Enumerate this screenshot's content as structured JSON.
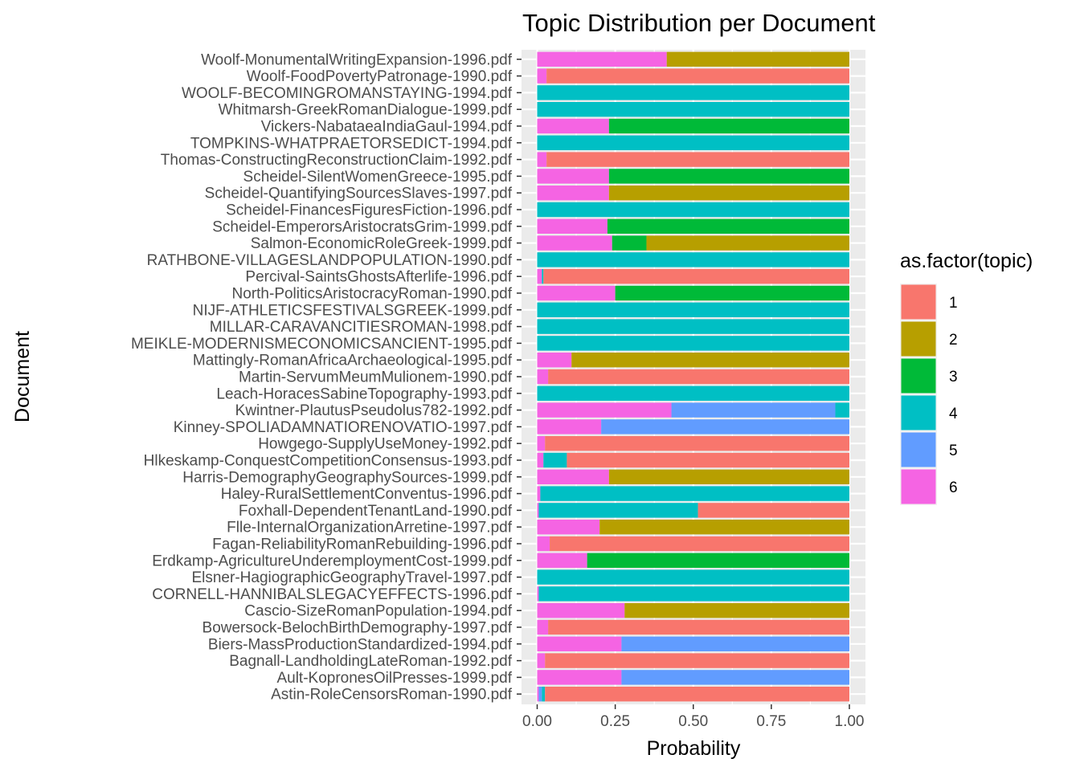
{
  "chart_data": {
    "type": "bar",
    "orientation": "horizontal",
    "stacked": true,
    "title": "Topic Distribution per Document",
    "xlabel": "Probability",
    "ylabel": "Document",
    "xlim": [
      0,
      1
    ],
    "x_ticks": [
      "0.00",
      "0.25",
      "0.50",
      "0.75",
      "1.00"
    ],
    "grid": true,
    "legend": {
      "title": "as.factor(topic)",
      "placement": "right",
      "entries": [
        "1",
        "2",
        "3",
        "4",
        "5",
        "6"
      ]
    },
    "colors": {
      "1": "#F8766D",
      "2": "#B79F00",
      "3": "#00BA38",
      "4": "#00BFC4",
      "5": "#619CFF",
      "6": "#F564E3"
    },
    "panel_background": "#EBEBEB",
    "stack_order": [
      "6",
      "5",
      "4",
      "3",
      "2",
      "1"
    ],
    "documents": [
      "Woolf-MonumentalWritingExpansion-1996.pdf",
      "Woolf-FoodPovertyPatronage-1990.pdf",
      "WOOLF-BECOMINGROMANSTAYING-1994.pdf",
      "Whitmarsh-GreekRomanDialogue-1999.pdf",
      "Vickers-NabataeaIndiaGaul-1994.pdf",
      "TOMPKINS-WHATPRAETORSEDICT-1994.pdf",
      "Thomas-ConstructingReconstructionClaim-1992.pdf",
      "Scheidel-SilentWomenGreece-1995.pdf",
      "Scheidel-QuantifyingSourcesSlaves-1997.pdf",
      "Scheidel-FinancesFiguresFiction-1996.pdf",
      "Scheidel-EmperorsAristocratsGrim-1999.pdf",
      "Salmon-EconomicRoleGreek-1999.pdf",
      "RATHBONE-VILLAGESLANDPOPULATION-1990.pdf",
      "Percival-SaintsGhostsAfterlife-1996.pdf",
      "North-PoliticsAristocracyRoman-1990.pdf",
      "NIJF-ATHLETICSFESTIVALSGREEK-1999.pdf",
      "MILLAR-CARAVANCITIESROMAN-1998.pdf",
      "MEIKLE-MODERNISMECONOMICSANCIENT-1995.pdf",
      "Mattingly-RomanAfricaArchaeological-1995.pdf",
      "Martin-ServumMeumMulionem-1990.pdf",
      "Leach-HoracesSabineTopography-1993.pdf",
      "Kwintner-PlautusPseudolus782-1992.pdf",
      "Kinney-SPOLIADAMNATIORENOVATIO-1997.pdf",
      "Howgego-SupplyUseMoney-1992.pdf",
      "Hlkeskamp-ConquestCompetitionConsensus-1993.pdf",
      "Harris-DemographyGeographySources-1999.pdf",
      "Haley-RuralSettlementConventus-1996.pdf",
      "Foxhall-DependentTenantLand-1990.pdf",
      "Flle-InternalOrganizationArretine-1997.pdf",
      "Fagan-ReliabilityRomanRebuilding-1996.pdf",
      "Erdkamp-AgricultureUnderemploymentCost-1999.pdf",
      "Elsner-HagiographicGeographyTravel-1997.pdf",
      "CORNELL-HANNIBALSLEGACYEFFECTS-1996.pdf",
      "Cascio-SizeRomanPopulation-1994.pdf",
      "Bowersock-BelochBirthDemography-1997.pdf",
      "Biers-MassProductionStandardized-1994.pdf",
      "Bagnall-LandholdingLateRoman-1992.pdf",
      "Ault-KopronesOilPresses-1999.pdf",
      "Astin-RoleCensorsRoman-1990.pdf"
    ],
    "series": [
      {
        "name": "1",
        "values": [
          0,
          0.97,
          0,
          0,
          0,
          0,
          0.97,
          0,
          0,
          0,
          0,
          0,
          0,
          0.98,
          0,
          0,
          0,
          0,
          0,
          0.965,
          0,
          0,
          0,
          0.975,
          0.905,
          0,
          0,
          0.485,
          0,
          0.96,
          0,
          0,
          0,
          0,
          0.965,
          0,
          0.975,
          0,
          0.975
        ]
      },
      {
        "name": "2",
        "values": [
          0.585,
          0,
          0,
          0,
          0,
          0,
          0,
          0,
          0.77,
          0,
          0,
          0.65,
          0,
          0,
          0,
          0,
          0,
          0,
          0.89,
          0,
          0,
          0,
          0,
          0,
          0,
          0.77,
          0,
          0,
          0.8,
          0,
          0,
          0,
          0,
          0.72,
          0,
          0,
          0,
          0,
          0
        ]
      },
      {
        "name": "3",
        "values": [
          0,
          0,
          0,
          0,
          0.77,
          0,
          0,
          0.77,
          0,
          0,
          0.775,
          0.11,
          0,
          0,
          0.75,
          0,
          0,
          0,
          0,
          0,
          0,
          0,
          0,
          0,
          0,
          0,
          0,
          0,
          0,
          0,
          0.84,
          0,
          0,
          0,
          0,
          0,
          0,
          0,
          0
        ]
      },
      {
        "name": "4",
        "values": [
          0,
          0,
          1.0,
          1.0,
          0,
          1.0,
          0,
          0,
          0,
          1.0,
          0,
          0,
          1.0,
          0.005,
          0,
          1.0,
          1.0,
          1.0,
          0,
          0,
          1.0,
          0.045,
          0,
          0,
          0.075,
          0,
          0.99,
          0.51,
          0,
          0,
          0,
          1.0,
          0.995,
          0,
          0,
          0,
          0,
          0,
          0.01
        ]
      },
      {
        "name": "5",
        "values": [
          0,
          0,
          0,
          0,
          0,
          0,
          0,
          0,
          0,
          0,
          0,
          0,
          0,
          0,
          0,
          0,
          0,
          0,
          0,
          0,
          0,
          0.525,
          0.795,
          0,
          0,
          0,
          0,
          0,
          0,
          0,
          0,
          0,
          0,
          0,
          0,
          0.73,
          0,
          0.73,
          0.01
        ]
      },
      {
        "name": "6",
        "values": [
          0.415,
          0.03,
          0,
          0,
          0.23,
          0,
          0.03,
          0.23,
          0.23,
          0,
          0.225,
          0.24,
          0,
          0.015,
          0.25,
          0,
          0,
          0,
          0.11,
          0.035,
          0,
          0.43,
          0.205,
          0.025,
          0.02,
          0.23,
          0.01,
          0.005,
          0.2,
          0.04,
          0.16,
          0,
          0.005,
          0.28,
          0.035,
          0.27,
          0.025,
          0.27,
          0.005
        ]
      }
    ]
  }
}
